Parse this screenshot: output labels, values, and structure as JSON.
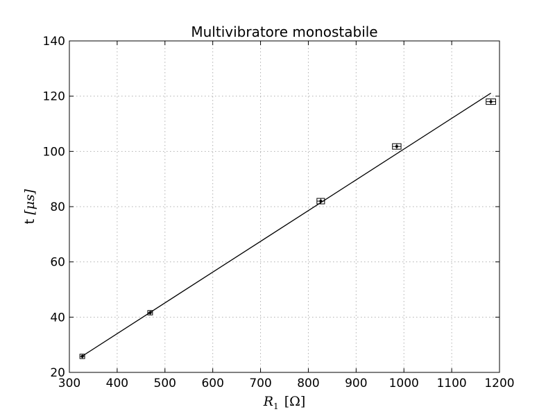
{
  "chart_data": {
    "type": "scatter",
    "title": "Multivibratore monostabile",
    "xlabel_main": "R",
    "xlabel_sub": "1",
    "xlabel_unit": "[Ω]",
    "ylabel_prefix": "t",
    "ylabel_unit": "[μs]",
    "xlim": [
      300,
      1200
    ],
    "ylim": [
      20,
      140
    ],
    "xticks": [
      300,
      400,
      500,
      600,
      700,
      800,
      900,
      1000,
      1100,
      1200
    ],
    "yticks": [
      20,
      40,
      60,
      80,
      100,
      120,
      140
    ],
    "xtick_labels": [
      "300",
      "400",
      "500",
      "600",
      "700",
      "800",
      "900",
      "1000",
      "1100",
      "1200"
    ],
    "ytick_labels": [
      "20",
      "40",
      "60",
      "80",
      "100",
      "120",
      "140"
    ],
    "grid": true,
    "points": [
      {
        "x": 327,
        "y": 25.8,
        "xerr": 5,
        "yerr": 0.8
      },
      {
        "x": 469,
        "y": 41.6,
        "xerr": 5,
        "yerr": 0.8
      },
      {
        "x": 826,
        "y": 82.0,
        "xerr": 8,
        "yerr": 1.0
      },
      {
        "x": 985,
        "y": 101.8,
        "xerr": 9,
        "yerr": 1.0
      },
      {
        "x": 1182,
        "y": 118.0,
        "xerr": 10,
        "yerr": 1.0
      }
    ],
    "fit_line": {
      "x": [
        327,
        1182
      ],
      "y": [
        25.9,
        121.1
      ]
    }
  }
}
